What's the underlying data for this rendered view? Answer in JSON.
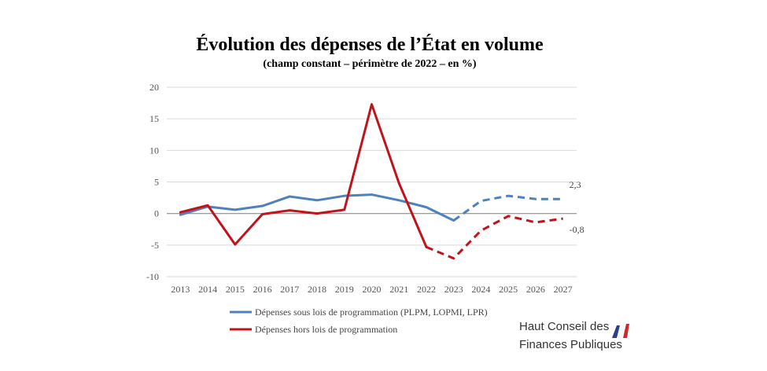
{
  "chart_data": {
    "type": "line",
    "title": "Évolution des dépenses de l’État en volume",
    "subtitle": "(champ constant – périmètre de 2022 – en %)",
    "x": [
      "2013",
      "2014",
      "2015",
      "2016",
      "2017",
      "2018",
      "2019",
      "2020",
      "2021",
      "2022",
      "2023",
      "2024",
      "2025",
      "2026",
      "2027"
    ],
    "ylim": [
      -10,
      20
    ],
    "yticks": [
      -10,
      -5,
      0,
      5,
      10,
      15,
      20
    ],
    "grid": true,
    "legend_position": "bottom-left",
    "series": [
      {
        "name": "Dépenses sous lois de programmation (PLPM, LOPMI, LPR)",
        "color": "#4f81bd",
        "values": [
          -0.2,
          1.1,
          0.6,
          1.2,
          2.7,
          2.1,
          2.8,
          3.0,
          2.1,
          1.0,
          -1.1,
          2.0,
          2.8,
          2.3,
          2.3
        ],
        "solid_until_index": 10,
        "end_label": "2,3"
      },
      {
        "name": "Dépenses hors lois de programmation",
        "color": "#c0141c",
        "values": [
          0.2,
          1.3,
          -4.9,
          -0.1,
          0.5,
          0.0,
          0.6,
          17.3,
          4.8,
          -5.3,
          -7.1,
          -2.7,
          -0.4,
          -1.4,
          -0.8
        ],
        "solid_until_index": 9,
        "end_label": "-0,8"
      }
    ]
  },
  "logo": {
    "line1": "Haut Conseil des",
    "line2": "Finances Publiques"
  }
}
